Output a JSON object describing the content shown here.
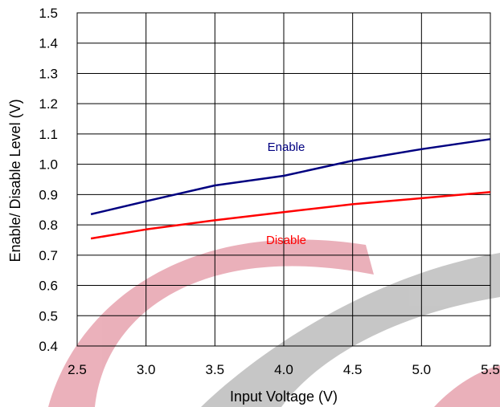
{
  "chart_data": {
    "type": "line",
    "xlabel": "Input Voltage (V)",
    "ylabel": "Enable/ Disable Level (V)",
    "xlim": [
      2.5,
      5.5
    ],
    "ylim": [
      0.4,
      1.5
    ],
    "x_ticks": [
      "2.5",
      "3.0",
      "3.5",
      "4.0",
      "4.5",
      "5.0",
      "5.5"
    ],
    "y_ticks": [
      "0.4",
      "0.5",
      "0.6",
      "0.7",
      "0.8",
      "0.9",
      "1.0",
      "1.1",
      "1.2",
      "1.3",
      "1.4",
      "1.5"
    ],
    "grid": true,
    "series": [
      {
        "name": "Enable",
        "color": "#000080",
        "x": [
          2.6,
          3.0,
          3.5,
          4.0,
          4.5,
          5.0,
          5.5
        ],
        "values": [
          0.835,
          0.878,
          0.93,
          0.962,
          1.012,
          1.05,
          1.083
        ]
      },
      {
        "name": "Disable",
        "color": "#ff0000",
        "x": [
          2.6,
          3.0,
          3.5,
          4.0,
          4.5,
          5.0,
          5.5
        ],
        "values": [
          0.755,
          0.785,
          0.815,
          0.842,
          0.868,
          0.888,
          0.908
        ]
      }
    ]
  }
}
